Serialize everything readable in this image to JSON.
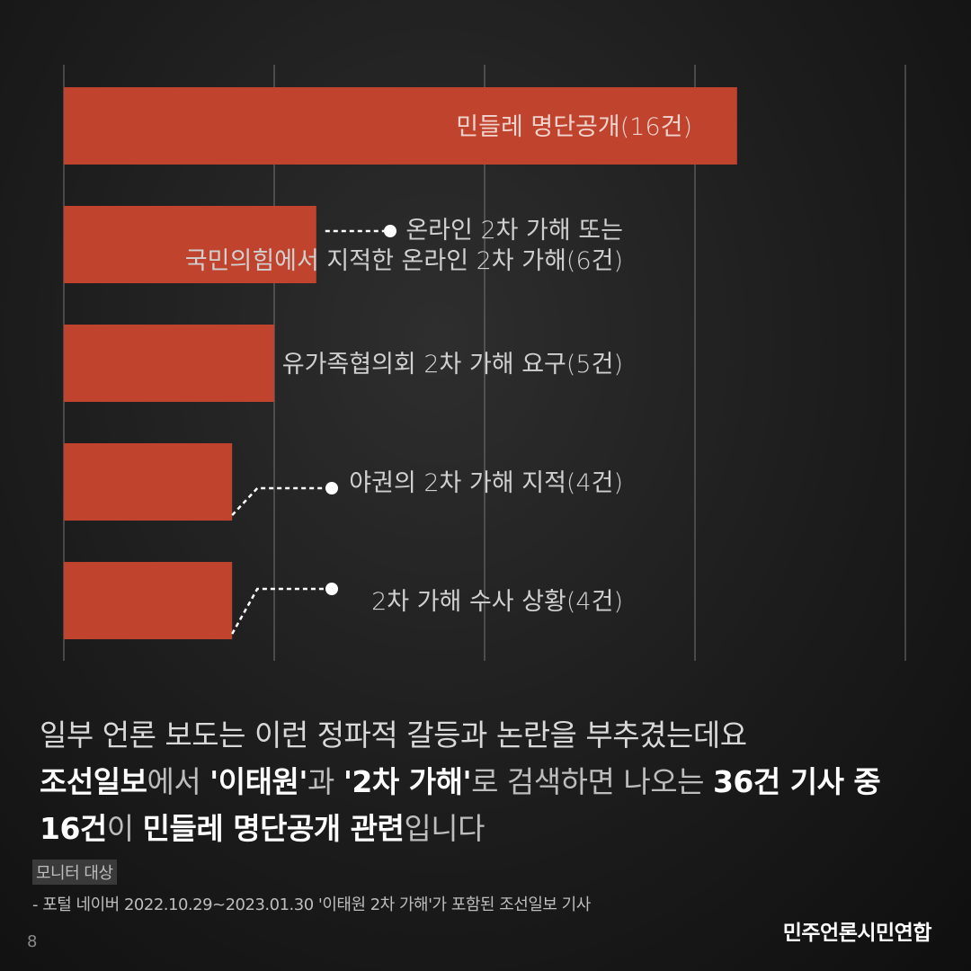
{
  "chart_data": {
    "type": "bar",
    "orientation": "horizontal",
    "categories": [
      "민들레 명단공개(16건)",
      "온라인 2차 가해 또는 국민의힘에서 지적한 온라인 2차 가해(6건)",
      "유가족협의회 2차 가해 요구(5건)",
      "야권의 2차 가해 지적(4건)",
      "2차 가해 수사 상황(4건)"
    ],
    "label_lines": [
      [
        "민들레 명단공개(16건)"
      ],
      [
        "온라인 2차 가해 또는",
        "국민의힘에서 지적한 온라인 2차 가해(6건)"
      ],
      [
        "유가족협의회 2차 가해 요구(5건)"
      ],
      [
        "야권의 2차 가해 지적(4건)"
      ],
      [
        "2차 가해 수사 상황(4건)"
      ]
    ],
    "values": [
      16,
      6,
      5,
      4,
      4
    ],
    "xlim": [
      0,
      20
    ],
    "grid": true,
    "bar_color": "#c0432e",
    "title": "",
    "xlabel": "",
    "ylabel": ""
  },
  "caption": {
    "line1": "일부 언론 보도는 이런 정파적 갈등과 논란을 부추겼는데요",
    "line2": [
      {
        "text": "조선일보",
        "bold": true
      },
      {
        "text": "에서 ",
        "bold": false
      },
      {
        "text": "'이태원'",
        "bold": true
      },
      {
        "text": "과 ",
        "bold": false
      },
      {
        "text": "'2차 가해'",
        "bold": true
      },
      {
        "text": "로 검색하면 나오는 ",
        "bold": false
      },
      {
        "text": "36건 기사 중",
        "bold": true
      }
    ],
    "line3": [
      {
        "text": "16건",
        "bold": true
      },
      {
        "text": "이 ",
        "bold": false
      },
      {
        "text": "민들레 명단공개 관련",
        "bold": true
      },
      {
        "text": "입니다",
        "bold": false
      }
    ]
  },
  "source": {
    "title": "모니터 대상",
    "detail": "- 포털 네이버 2022.10.29~2023.01.30  '이태원 2차 가해'가 포함된 조선일보 기사"
  },
  "page_number": "8",
  "organization": "민주언론시민연합",
  "colors": {
    "bar": "#c0432e",
    "background": "#1c1c1c",
    "grid": "#8a8a8a",
    "text": "#d9d9d9",
    "highlight_text": "#ffffff"
  }
}
